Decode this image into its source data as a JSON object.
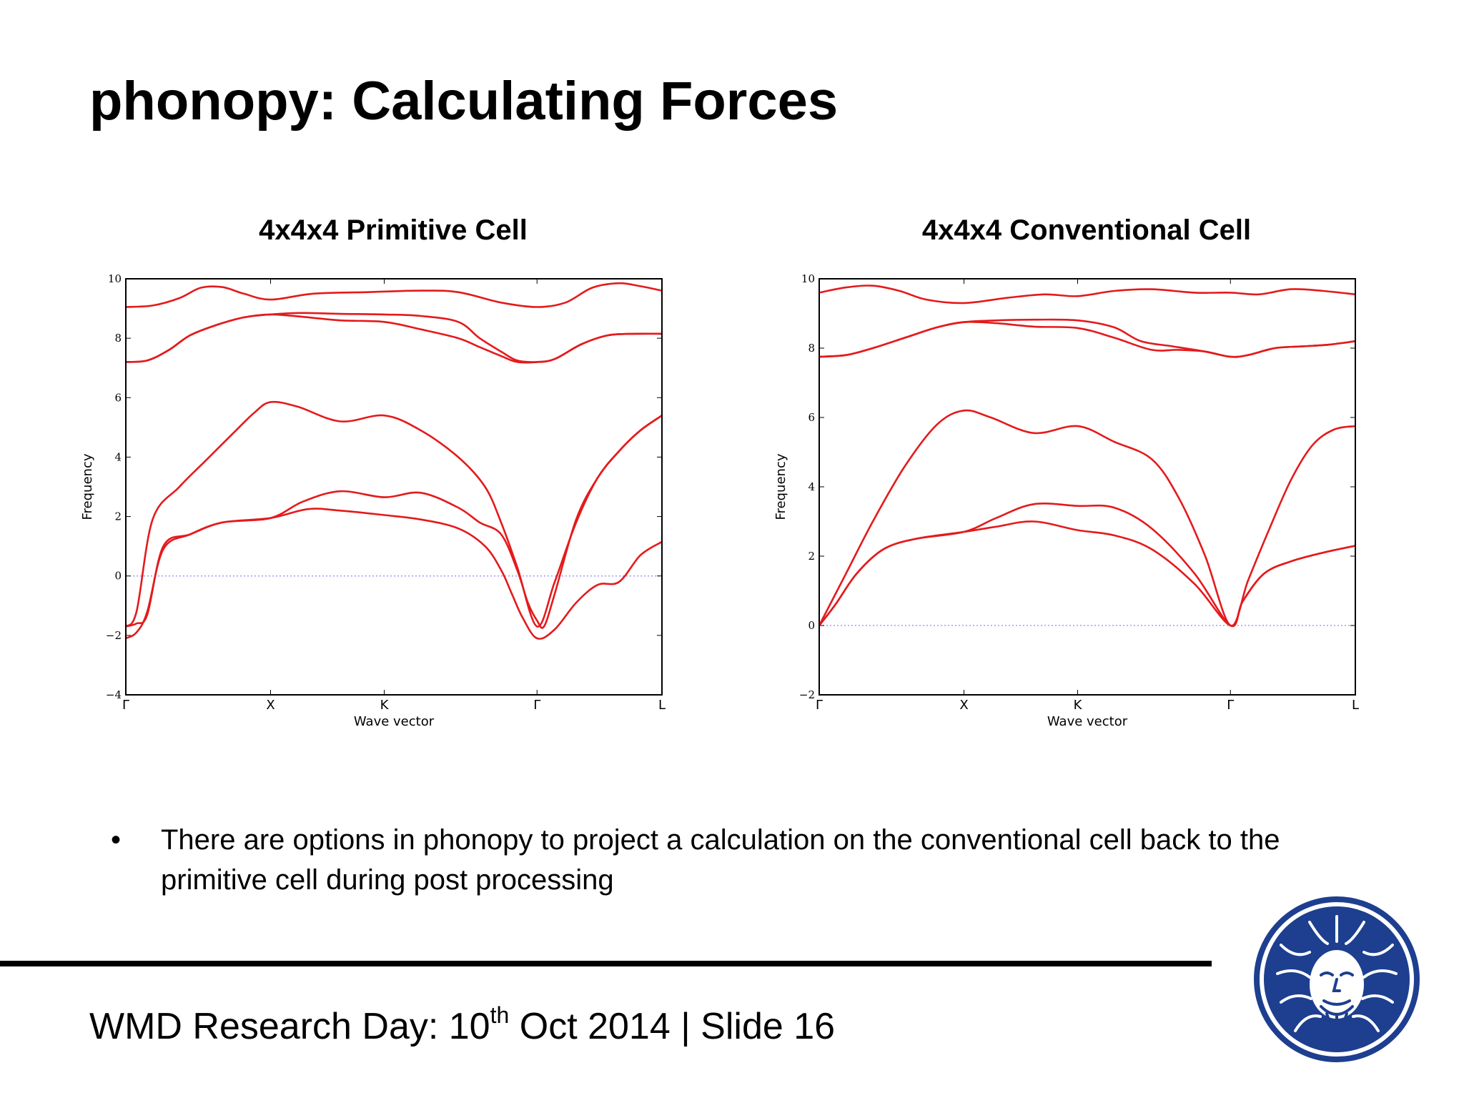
{
  "slide": {
    "title": "phonopy: Calculating Forces",
    "bullet": "There are options in phonopy to project a calculation on the conventional cell back to the primitive cell during post processing",
    "footer": {
      "prefix": "WMD Research Day: 10",
      "superscript": "th",
      "suffix": " Oct 2014 | Slide 16"
    }
  },
  "chart_data": [
    {
      "type": "line",
      "title": "4x4x4 Primitive Cell",
      "xlabel": "Wave vector",
      "ylabel": "Frequency",
      "ylim": [
        -4,
        10
      ],
      "yticks": [
        -4,
        -2,
        0,
        2,
        4,
        6,
        8,
        10
      ],
      "ytick_labels": [
        "−4",
        "−2",
        "0",
        "2",
        "4",
        "6",
        "8",
        "10"
      ],
      "xlim": [
        0,
        1
      ],
      "xticks": [
        0,
        0.27,
        0.482,
        0.767,
        1
      ],
      "xtick_labels": [
        "Γ",
        "X",
        "K",
        "Γ",
        "L"
      ],
      "zero_line": true,
      "grid": false,
      "line_color": "#e41a1c",
      "series": [
        {
          "x": [
            0,
            0.02,
            0.04,
            0.07,
            0.12,
            0.18,
            0.27,
            0.34,
            0.4,
            0.482,
            0.55,
            0.62,
            0.67,
            0.7,
            0.72,
            0.74,
            0.767,
            0.8,
            0.84,
            0.88,
            0.92,
            0.96,
            1.0
          ],
          "y": [
            -2.1,
            -1.9,
            -1.2,
            0.9,
            1.4,
            1.8,
            1.95,
            2.25,
            2.2,
            2.05,
            1.9,
            1.6,
            1.0,
            0.2,
            -0.6,
            -1.4,
            -2.1,
            -1.8,
            -0.9,
            -0.3,
            -0.2,
            0.7,
            1.15
          ]
        },
        {
          "x": [
            0,
            0.02,
            0.04,
            0.07,
            0.12,
            0.18,
            0.27,
            0.33,
            0.4,
            0.482,
            0.55,
            0.62,
            0.66,
            0.7,
            0.73,
            0.75,
            0.767,
            0.78,
            0.8,
            0.84,
            0.88,
            0.92,
            0.96,
            1.0
          ],
          "y": [
            -1.7,
            -1.6,
            -1.3,
            1.0,
            1.4,
            1.8,
            1.95,
            2.5,
            2.85,
            2.65,
            2.8,
            2.3,
            1.8,
            1.4,
            0.2,
            -0.9,
            -1.5,
            -1.7,
            -0.6,
            1.9,
            3.3,
            4.2,
            4.9,
            5.4
          ]
        },
        {
          "x": [
            0,
            0.02,
            0.05,
            0.1,
            0.15,
            0.2,
            0.24,
            0.27,
            0.32,
            0.4,
            0.482,
            0.55,
            0.62,
            0.67,
            0.7,
            0.73,
            0.767,
            0.8,
            0.84,
            0.88,
            0.92,
            0.96,
            1.0
          ],
          "y": [
            -1.7,
            -1.2,
            1.9,
            3.0,
            3.9,
            4.8,
            5.5,
            5.85,
            5.7,
            5.2,
            5.4,
            4.9,
            4.0,
            3.0,
            1.8,
            0.3,
            -1.7,
            -0.2,
            1.8,
            3.3,
            4.2,
            4.9,
            5.4
          ]
        },
        {
          "x": [
            0,
            0.04,
            0.08,
            0.12,
            0.17,
            0.22,
            0.27,
            0.33,
            0.4,
            0.482,
            0.55,
            0.62,
            0.66,
            0.7,
            0.73,
            0.767,
            0.8,
            0.85,
            0.9,
            0.95,
            1.0
          ],
          "y": [
            7.2,
            7.25,
            7.6,
            8.1,
            8.45,
            8.7,
            8.8,
            8.72,
            8.6,
            8.55,
            8.3,
            8.0,
            7.7,
            7.4,
            7.2,
            7.2,
            7.3,
            7.8,
            8.1,
            8.15,
            8.15
          ]
        },
        {
          "x": [
            0,
            0.04,
            0.08,
            0.12,
            0.17,
            0.22,
            0.27,
            0.33,
            0.4,
            0.482,
            0.55,
            0.62,
            0.66,
            0.7,
            0.73,
            0.767,
            0.8,
            0.85,
            0.9,
            0.95,
            1.0
          ],
          "y": [
            7.2,
            7.25,
            7.6,
            8.1,
            8.45,
            8.7,
            8.8,
            8.85,
            8.82,
            8.8,
            8.75,
            8.55,
            8.0,
            7.55,
            7.25,
            7.2,
            7.3,
            7.8,
            8.1,
            8.15,
            8.15
          ]
        },
        {
          "x": [
            0,
            0.05,
            0.1,
            0.14,
            0.18,
            0.22,
            0.27,
            0.35,
            0.45,
            0.55,
            0.62,
            0.7,
            0.767,
            0.82,
            0.87,
            0.92,
            0.96,
            1.0
          ],
          "y": [
            9.05,
            9.1,
            9.35,
            9.7,
            9.72,
            9.5,
            9.3,
            9.5,
            9.55,
            9.6,
            9.55,
            9.2,
            9.05,
            9.2,
            9.7,
            9.85,
            9.75,
            9.6
          ]
        }
      ]
    },
    {
      "type": "line",
      "title": "4x4x4 Conventional Cell",
      "xlabel": "Wave vector",
      "ylabel": "Frequency",
      "ylim": [
        -2,
        10
      ],
      "yticks": [
        -2,
        0,
        2,
        4,
        6,
        8,
        10
      ],
      "ytick_labels": [
        "−2",
        "0",
        "2",
        "4",
        "6",
        "8",
        "10"
      ],
      "xlim": [
        0,
        1
      ],
      "xticks": [
        0,
        0.27,
        0.482,
        0.767,
        1
      ],
      "xtick_labels": [
        "Γ",
        "X",
        "K",
        "Γ",
        "L"
      ],
      "zero_line": true,
      "grid": false,
      "line_color": "#e41a1c",
      "series": [
        {
          "x": [
            0,
            0.03,
            0.07,
            0.12,
            0.18,
            0.27,
            0.33,
            0.4,
            0.482,
            0.55,
            0.62,
            0.7,
            0.767,
            0.79,
            0.83,
            0.88,
            0.94,
            1.0
          ],
          "y": [
            0,
            0.6,
            1.5,
            2.2,
            2.5,
            2.7,
            2.85,
            3.0,
            2.75,
            2.6,
            2.2,
            1.2,
            0,
            0.7,
            1.5,
            1.85,
            2.1,
            2.3
          ]
        },
        {
          "x": [
            0,
            0.03,
            0.07,
            0.12,
            0.18,
            0.27,
            0.33,
            0.4,
            0.482,
            0.55,
            0.62,
            0.7,
            0.767,
            0.79,
            0.83,
            0.88,
            0.94,
            1.0
          ],
          "y": [
            0,
            0.6,
            1.5,
            2.2,
            2.5,
            2.7,
            3.1,
            3.5,
            3.45,
            3.4,
            2.8,
            1.5,
            0,
            0.7,
            1.5,
            1.85,
            2.1,
            2.3
          ]
        },
        {
          "x": [
            0,
            0.05,
            0.1,
            0.16,
            0.22,
            0.27,
            0.32,
            0.4,
            0.482,
            0.55,
            0.62,
            0.67,
            0.72,
            0.767,
            0.8,
            0.84,
            0.88,
            0.92,
            0.96,
            1.0
          ],
          "y": [
            0,
            1.5,
            3.0,
            4.6,
            5.8,
            6.2,
            6.0,
            5.55,
            5.75,
            5.3,
            4.8,
            3.7,
            2.0,
            0,
            1.3,
            2.8,
            4.2,
            5.2,
            5.65,
            5.75
          ]
        },
        {
          "x": [
            0,
            0.05,
            0.1,
            0.16,
            0.22,
            0.27,
            0.33,
            0.4,
            0.482,
            0.55,
            0.62,
            0.67,
            0.72,
            0.767,
            0.8,
            0.85,
            0.9,
            0.95,
            1.0
          ],
          "y": [
            7.75,
            7.8,
            8.0,
            8.3,
            8.6,
            8.75,
            8.72,
            8.62,
            8.58,
            8.3,
            7.95,
            7.95,
            7.9,
            7.75,
            7.8,
            8.0,
            8.05,
            8.1,
            8.2
          ]
        },
        {
          "x": [
            0,
            0.05,
            0.1,
            0.16,
            0.22,
            0.27,
            0.33,
            0.4,
            0.482,
            0.55,
            0.6,
            0.66,
            0.72,
            0.767,
            0.8,
            0.85,
            0.9,
            0.95,
            1.0
          ],
          "y": [
            7.75,
            7.8,
            8.0,
            8.3,
            8.6,
            8.75,
            8.8,
            8.82,
            8.8,
            8.6,
            8.2,
            8.05,
            7.9,
            7.75,
            7.8,
            8.0,
            8.05,
            8.1,
            8.2
          ]
        },
        {
          "x": [
            0,
            0.05,
            0.1,
            0.15,
            0.2,
            0.27,
            0.35,
            0.42,
            0.482,
            0.55,
            0.62,
            0.7,
            0.767,
            0.82,
            0.88,
            0.94,
            1.0
          ],
          "y": [
            9.6,
            9.75,
            9.8,
            9.65,
            9.4,
            9.3,
            9.45,
            9.55,
            9.5,
            9.65,
            9.7,
            9.6,
            9.6,
            9.55,
            9.7,
            9.65,
            9.55
          ]
        }
      ]
    }
  ]
}
